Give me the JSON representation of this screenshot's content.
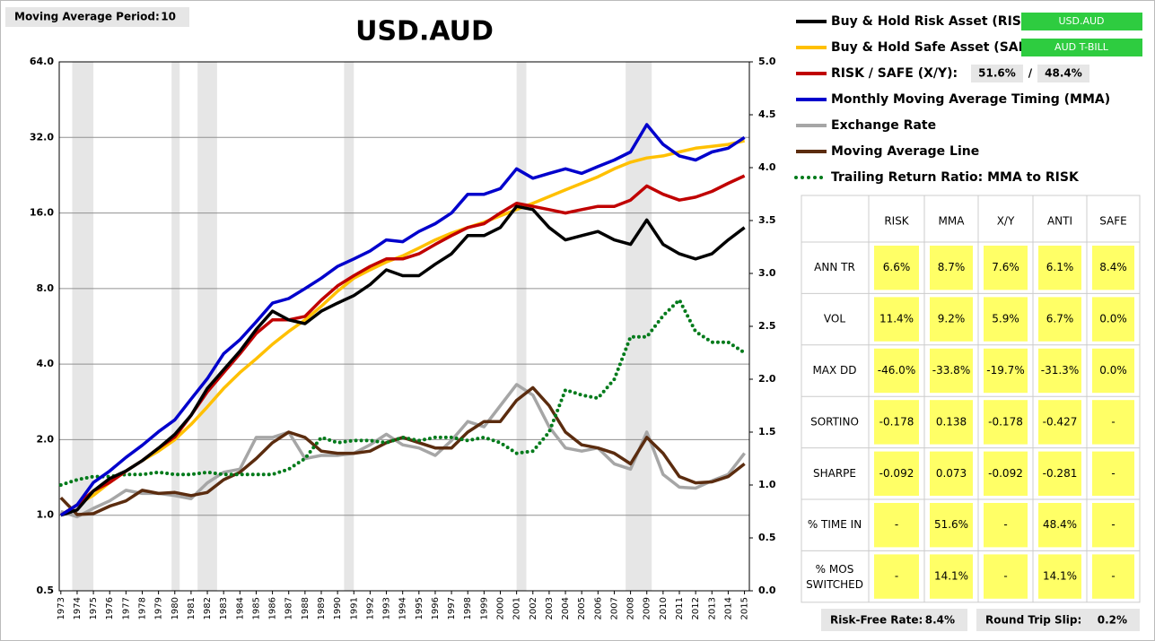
{
  "settings": {
    "label": "Moving Average Period:",
    "value": 10
  },
  "chart_data": {
    "type": "line",
    "title": "USD.AUD",
    "x": [
      1973,
      1974,
      1975,
      1976,
      1977,
      1978,
      1979,
      1980,
      1981,
      1982,
      1983,
      1984,
      1985,
      1986,
      1987,
      1988,
      1989,
      1990,
      1991,
      1992,
      1993,
      1994,
      1995,
      1996,
      1997,
      1998,
      1999,
      2000,
      2001,
      2002,
      2003,
      2004,
      2005,
      2006,
      2007,
      2008,
      2009,
      2010,
      2011,
      2012,
      2013,
      2014,
      2015
    ],
    "xlim": [
      1972.9,
      2015.3
    ],
    "xticks": [
      1973,
      1974,
      1975,
      1976,
      1977,
      1978,
      1979,
      1980,
      1981,
      1982,
      1983,
      1984,
      1985,
      1986,
      1987,
      1988,
      1989,
      1990,
      1991,
      1992,
      1993,
      1994,
      1995,
      1996,
      1997,
      1998,
      1999,
      2000,
      2001,
      2002,
      2003,
      2004,
      2005,
      2006,
      2007,
      2008,
      2009,
      2010,
      2011,
      2012,
      2013,
      2014,
      2015
    ],
    "log_scale": true,
    "ylim": [
      0.5,
      64
    ],
    "yticks": [
      0.5,
      {
        "value": 1,
        "label": "1.0"
      },
      {
        "value": 2,
        "label": "2.0"
      },
      {
        "value": 4,
        "label": "4.0"
      },
      {
        "value": 8,
        "label": "8.0"
      },
      {
        "value": 16,
        "label": "16.0"
      },
      {
        "value": 32,
        "label": "32.0"
      },
      {
        "value": 64,
        "label": "64.0"
      }
    ],
    "y2lim": [
      0,
      5
    ],
    "y2ticks": [
      {
        "value": 0,
        "label": "0.0"
      },
      0.5,
      {
        "value": 1,
        "label": "1.0"
      },
      1.5,
      {
        "value": 2,
        "label": "2.0"
      },
      2.5,
      {
        "value": 3,
        "label": "3.0"
      },
      3.5,
      {
        "value": 4,
        "label": "4.0"
      },
      4.5,
      {
        "value": 5,
        "label": "5.0"
      }
    ],
    "grid": true,
    "shaded_periods": [
      [
        1973.7,
        1975.0
      ],
      [
        1979.8,
        1980.3
      ],
      [
        1981.4,
        1982.6
      ],
      [
        1990.4,
        1991.0
      ],
      [
        2001.0,
        2001.6
      ],
      [
        2007.7,
        2009.3
      ]
    ],
    "series": [
      {
        "name": "Buy & Hold Risk Asset (RISK):",
        "color": "#000000",
        "tags": [
          "USD.AUD"
        ],
        "values": [
          1.0,
          1.05,
          1.25,
          1.4,
          1.5,
          1.65,
          1.85,
          2.1,
          2.5,
          3.2,
          3.8,
          4.5,
          5.5,
          6.5,
          6.0,
          5.8,
          6.5,
          7.0,
          7.5,
          8.3,
          9.5,
          9.0,
          9.0,
          10,
          11,
          13,
          13,
          14,
          17,
          16.5,
          14,
          12.5,
          13,
          13.5,
          12.5,
          12,
          15,
          12,
          11,
          10.5,
          11,
          12.5,
          14
        ]
      },
      {
        "name": "Buy & Hold Safe Asset (SAFE):",
        "color": "#ffc000",
        "tags": [
          "AUD T-BILL"
        ],
        "values": [
          1.0,
          1.1,
          1.2,
          1.35,
          1.5,
          1.65,
          1.8,
          2.0,
          2.3,
          2.7,
          3.2,
          3.7,
          4.2,
          4.8,
          5.4,
          6.0,
          6.8,
          7.8,
          8.8,
          9.5,
          10.2,
          10.8,
          11.6,
          12.5,
          13.3,
          14,
          14.7,
          15.6,
          16.5,
          17.5,
          18.6,
          19.8,
          21,
          22.3,
          24,
          25.5,
          26.5,
          27,
          28,
          29,
          29.5,
          30,
          31
        ]
      },
      {
        "name": "RISK / SAFE (X/Y):",
        "color": "#c00000",
        "tags": [
          "51.6%",
          "/",
          "48.4%"
        ],
        "values": [
          1.0,
          1.1,
          1.25,
          1.35,
          1.5,
          1.65,
          1.85,
          2.05,
          2.5,
          3.1,
          3.7,
          4.4,
          5.3,
          6.0,
          6.0,
          6.2,
          7.2,
          8.2,
          9.0,
          9.8,
          10.5,
          10.5,
          11,
          12,
          13,
          14,
          14.5,
          16,
          17.5,
          17,
          16.5,
          16,
          16.5,
          17,
          17,
          18,
          20.5,
          19,
          18,
          18.5,
          19.5,
          21,
          22.5
        ]
      },
      {
        "name": "Monthly Moving Average Timing (MMA)",
        "color": "#0000cc",
        "values": [
          1.0,
          1.1,
          1.35,
          1.5,
          1.7,
          1.9,
          2.15,
          2.4,
          2.9,
          3.5,
          4.4,
          5.0,
          5.9,
          7.0,
          7.3,
          8.0,
          8.8,
          9.8,
          10.5,
          11.3,
          12.5,
          12.3,
          13.5,
          14.5,
          16,
          19,
          19,
          20,
          24,
          22,
          23,
          24,
          23,
          24.5,
          26,
          28,
          36,
          30,
          27,
          26,
          28,
          29,
          32
        ]
      },
      {
        "name": "Exchange Rate",
        "color": "#a6a6a6",
        "axis": "y2",
        "values": [
          0.75,
          0.7,
          0.78,
          0.85,
          0.95,
          0.92,
          0.92,
          0.9,
          0.87,
          1.02,
          1.12,
          1.15,
          1.45,
          1.45,
          1.5,
          1.25,
          1.28,
          1.28,
          1.3,
          1.38,
          1.48,
          1.38,
          1.35,
          1.28,
          1.42,
          1.6,
          1.55,
          1.75,
          1.95,
          1.85,
          1.55,
          1.35,
          1.32,
          1.35,
          1.2,
          1.15,
          1.5,
          1.1,
          0.98,
          0.97,
          1.04,
          1.1,
          1.3
        ]
      },
      {
        "name": "Moving Average Line",
        "color": "#5b2c0f",
        "axis": "y2",
        "values": [
          0.88,
          0.72,
          0.73,
          0.8,
          0.85,
          0.95,
          0.92,
          0.93,
          0.9,
          0.93,
          1.05,
          1.12,
          1.25,
          1.4,
          1.5,
          1.45,
          1.32,
          1.3,
          1.3,
          1.32,
          1.4,
          1.45,
          1.4,
          1.35,
          1.35,
          1.5,
          1.6,
          1.6,
          1.8,
          1.92,
          1.75,
          1.5,
          1.38,
          1.35,
          1.3,
          1.2,
          1.45,
          1.3,
          1.08,
          1.02,
          1.03,
          1.08,
          1.2
        ]
      },
      {
        "name": "Trailing Return Ratio: MMA to RISK",
        "color": "#007a1a",
        "axis": "y2",
        "dash": "dotted",
        "values": [
          1.0,
          1.05,
          1.08,
          1.08,
          1.1,
          1.1,
          1.12,
          1.1,
          1.1,
          1.12,
          1.1,
          1.1,
          1.1,
          1.1,
          1.15,
          1.25,
          1.45,
          1.4,
          1.42,
          1.42,
          1.4,
          1.45,
          1.42,
          1.45,
          1.45,
          1.42,
          1.45,
          1.4,
          1.3,
          1.32,
          1.5,
          1.9,
          1.85,
          1.82,
          2.0,
          2.4,
          2.4,
          2.6,
          2.75,
          2.45,
          2.35,
          2.35,
          2.25
        ]
      }
    ]
  },
  "stats_table": {
    "header": [
      "RISK",
      "MMA",
      "X/Y",
      "ANTI",
      "SAFE"
    ],
    "rows": [
      {
        "label": "ANN TR",
        "cells": [
          "6.6%",
          "8.7%",
          "7.6%",
          "6.1%",
          "8.4%"
        ]
      },
      {
        "label": "VOL",
        "cells": [
          "11.4%",
          "9.2%",
          "5.9%",
          "6.7%",
          "0.0%"
        ]
      },
      {
        "label": "MAX DD",
        "cells": [
          "-46.0%",
          "-33.8%",
          "-19.7%",
          "-31.3%",
          "0.0%"
        ]
      },
      {
        "label": "SORTINO",
        "cells": [
          "-0.178",
          "0.138",
          "-0.178",
          "-0.427",
          "-"
        ]
      },
      {
        "label": "SHARPE",
        "cells": [
          "-0.092",
          "0.073",
          "-0.092",
          "-0.281",
          "-"
        ]
      },
      {
        "label": "% TIME IN",
        "cells": [
          "-",
          "51.6%",
          "-",
          "48.4%",
          "-"
        ]
      },
      {
        "label": "% MOS SWITCHED",
        "cells": [
          "-",
          "14.1%",
          "-",
          "14.1%",
          "-"
        ]
      }
    ]
  },
  "footer": [
    {
      "label": "Risk-Free Rate:",
      "value": "8.4%"
    },
    {
      "label": "Round Trip Slip:",
      "value": "0.2%"
    }
  ]
}
